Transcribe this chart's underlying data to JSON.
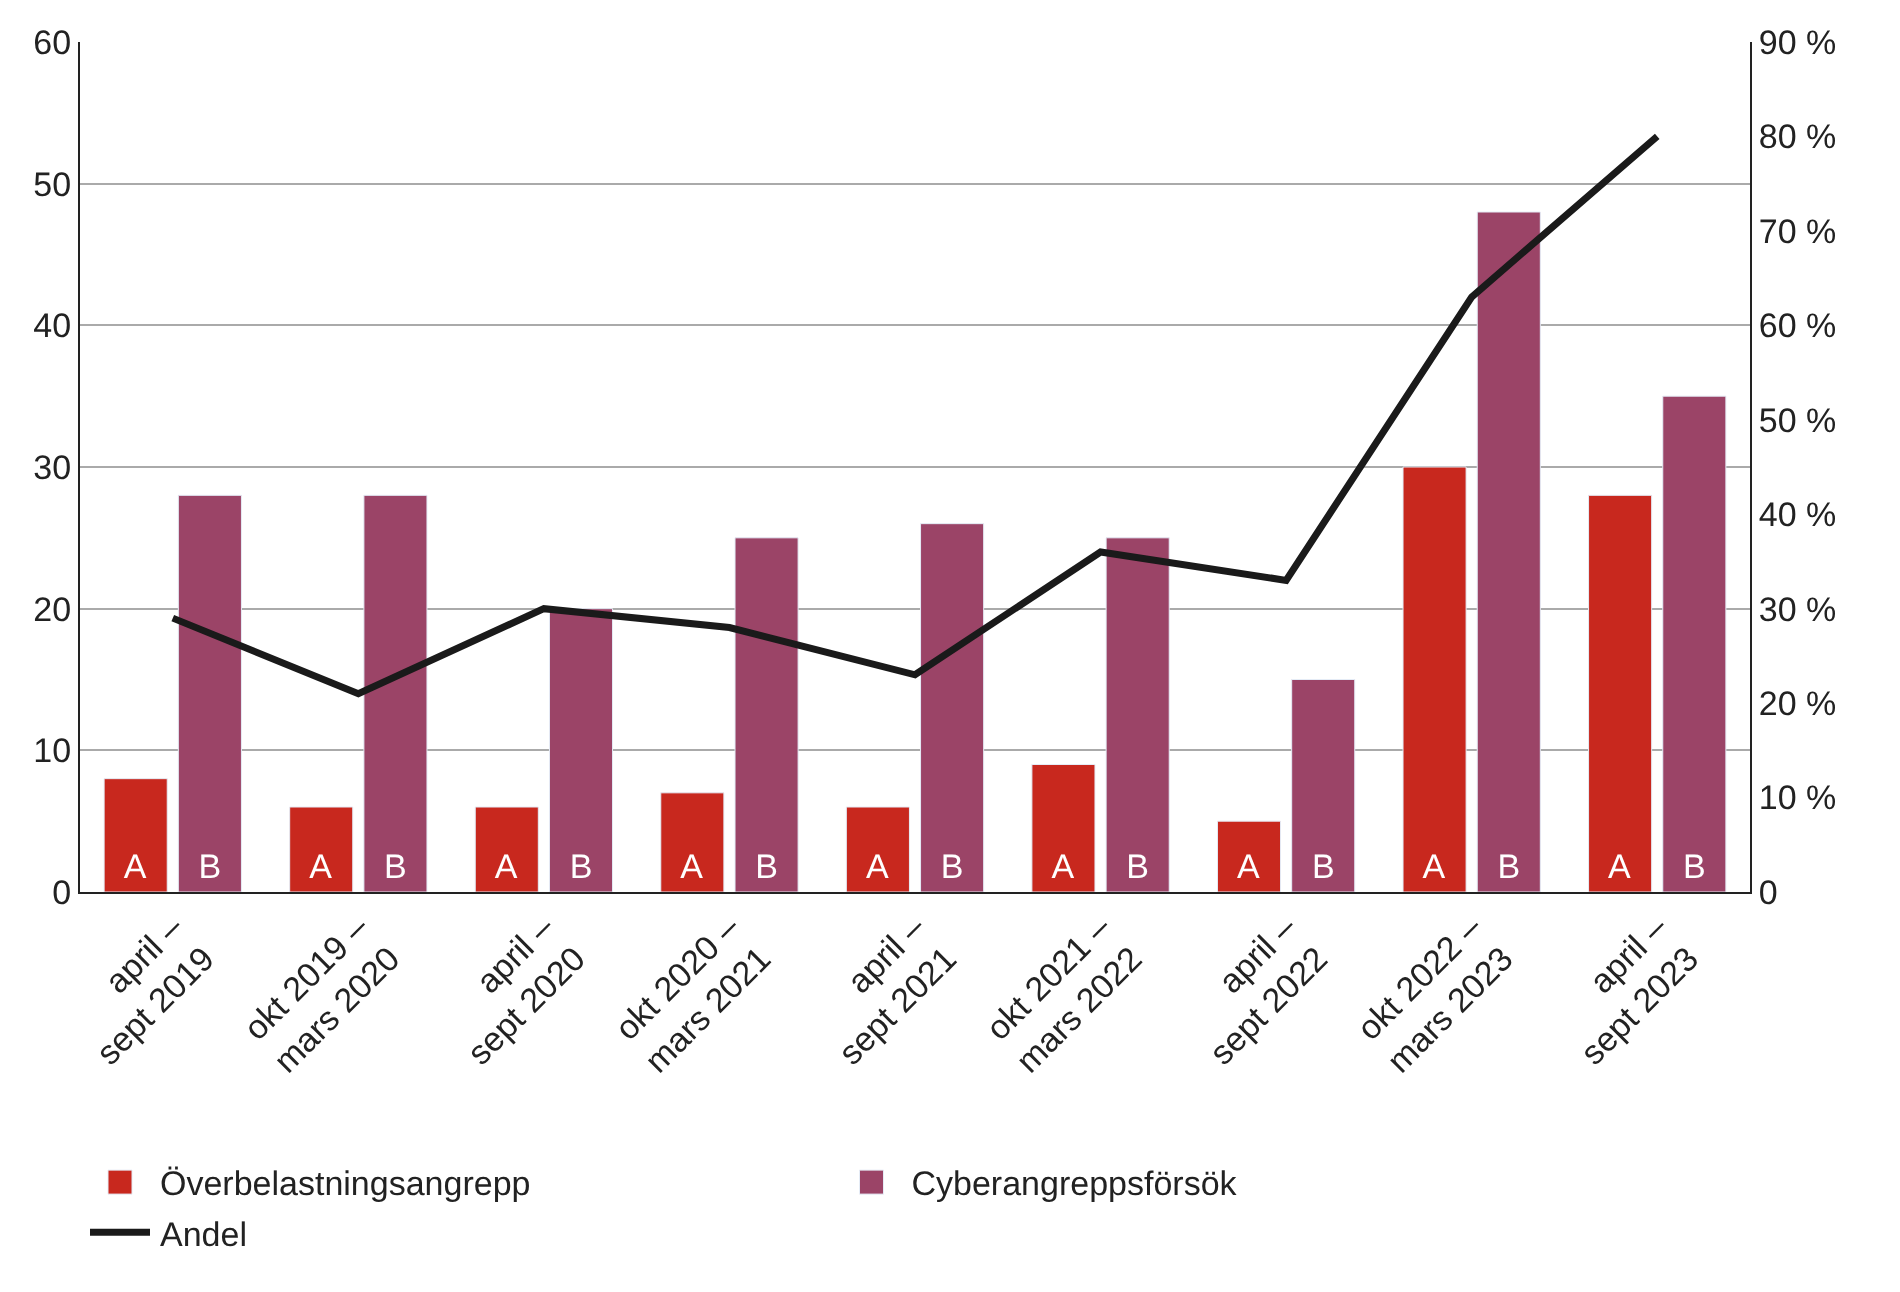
{
  "chart_data": {
    "type": "bar",
    "categories": [
      "april –\nsept 2019",
      "okt 2019 –\nmars 2020",
      "april –\nsept 2020",
      "okt 2020 –\nmars 2021",
      "april –\nsept 2021",
      "okt 2021 –\nmars 2022",
      "april –\nsept 2022",
      "okt 2022 –\nmars 2023",
      "april –\nsept 2023"
    ],
    "series": [
      {
        "name": "Överbelastningsangrepp",
        "color": "#c8281e",
        "values": [
          8,
          6,
          6,
          7,
          6,
          9,
          5,
          30,
          28
        ],
        "value_labels": [
          "A",
          "A",
          "A",
          "A",
          "A",
          "A",
          "A",
          "A",
          "A"
        ]
      },
      {
        "name": "Cyberangreppsförsök",
        "color": "#9b4467",
        "values": [
          28,
          28,
          20,
          25,
          26,
          25,
          15,
          48,
          35
        ],
        "value_labels": [
          "B",
          "B",
          "B",
          "B",
          "B",
          "B",
          "B",
          "B",
          "B"
        ]
      },
      {
        "name": "Andel",
        "type": "line",
        "axis": "y2",
        "color": "#1a1a1a",
        "values": [
          29,
          21,
          30,
          28,
          23,
          36,
          33,
          63,
          80
        ]
      }
    ],
    "ylim": [
      0,
      60
    ],
    "yticks": [
      0,
      10,
      20,
      30,
      40,
      50,
      60
    ],
    "y2lim": [
      0,
      90
    ],
    "y2ticks": [
      0,
      {
        "value": 10,
        "label": "10 %"
      },
      {
        "value": 20,
        "label": "20 %"
      },
      {
        "value": 30,
        "label": "30 %"
      },
      {
        "value": 40,
        "label": "40 %"
      },
      {
        "value": 50,
        "label": "50 %"
      },
      {
        "value": 60,
        "label": "60 %"
      },
      {
        "value": 70,
        "label": "70 %"
      },
      {
        "value": 80,
        "label": "80 %"
      },
      {
        "value": 90,
        "label": "90 %"
      }
    ],
    "grid": "y",
    "legend": "bottom",
    "marker": "none",
    "line_style": "solid"
  }
}
